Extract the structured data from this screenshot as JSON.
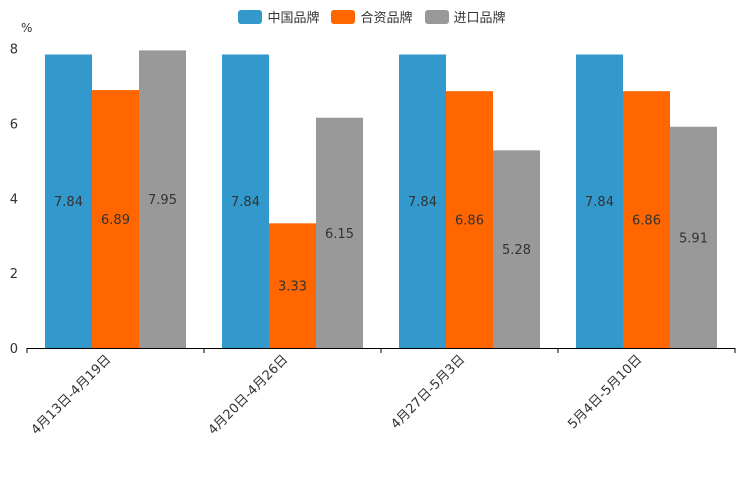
{
  "chart_data": {
    "type": "bar",
    "title": "",
    "ylabel": "%",
    "xlabel": "",
    "ylim": [
      0,
      8
    ],
    "yticks": [
      "0",
      "2",
      "4",
      "6",
      "8"
    ],
    "categories": [
      "4月13日-4月19日",
      "4月20日-4月26日",
      "4月27日-5月3日",
      "5月4日-5月10日"
    ],
    "series": [
      {
        "name": "中国品牌",
        "color": "#3399CC",
        "values": [
          7.84,
          7.84,
          7.84,
          7.84
        ],
        "labels": [
          "7.84",
          "7.84",
          "7.84",
          "7.84"
        ]
      },
      {
        "name": "合资品牌",
        "color": "#FF6600",
        "values": [
          6.89,
          3.33,
          6.86,
          6.86
        ],
        "labels": [
          "6.89",
          "3.33",
          "6.86",
          "6.86"
        ]
      },
      {
        "name": "进口品牌",
        "color": "#999999",
        "values": [
          7.95,
          6.15,
          5.28,
          5.91
        ],
        "labels": [
          "7.95",
          "6.15",
          "5.28",
          "5.91"
        ]
      }
    ],
    "legend_position": "top-center"
  }
}
